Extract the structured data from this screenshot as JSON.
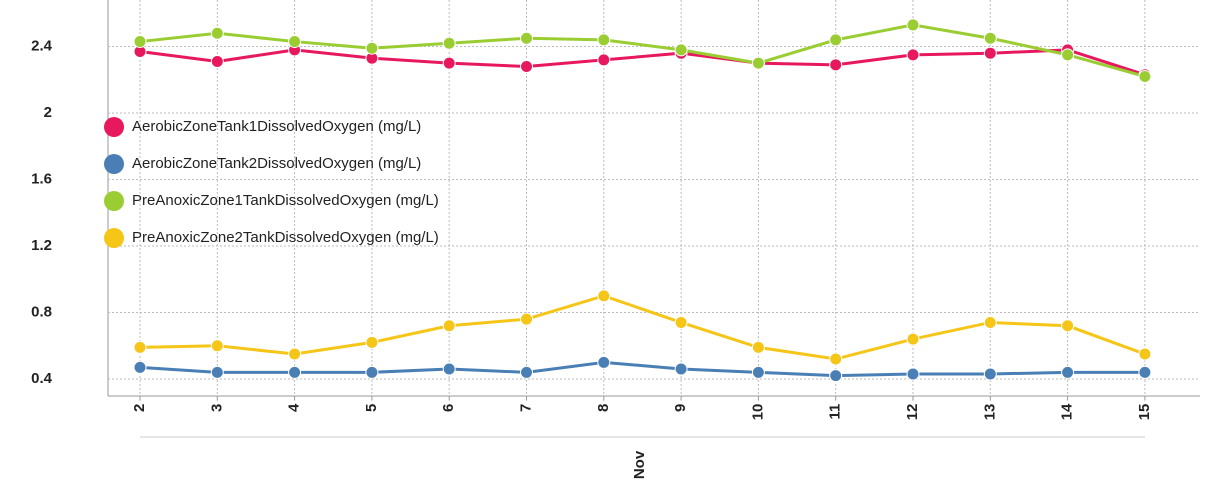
{
  "chart_data": {
    "type": "line",
    "x_label": "Nov",
    "categories": [
      "2",
      "3",
      "4",
      "5",
      "6",
      "7",
      "8",
      "9",
      "10",
      "11",
      "12",
      "13",
      "14",
      "15"
    ],
    "ylim": [
      0.3,
      2.68
    ],
    "yticks": [
      0.4,
      0.8,
      1.2,
      1.6,
      2,
      2.4
    ],
    "grid": true,
    "legend": "upper left",
    "series": [
      {
        "name": "AerobicZoneTank1DissolvedOxygen (mg/L)",
        "color": "#e8185e",
        "values": [
          2.37,
          2.31,
          2.38,
          2.33,
          2.3,
          2.28,
          2.32,
          2.36,
          2.3,
          2.29,
          2.35,
          2.36,
          2.38,
          2.23
        ]
      },
      {
        "name": "AerobicZoneTank2DissolvedOxygen (mg/L)",
        "color": "#4a7fb5",
        "values": [
          0.47,
          0.44,
          0.44,
          0.44,
          0.46,
          0.44,
          0.5,
          0.46,
          0.44,
          0.42,
          0.43,
          0.43,
          0.44,
          0.44
        ]
      },
      {
        "name": "PreAnoxicZone1TankDissolvedOxygen (mg/L)",
        "color": "#9acd32",
        "values": [
          2.43,
          2.48,
          2.43,
          2.39,
          2.42,
          2.45,
          2.44,
          2.38,
          2.3,
          2.44,
          2.53,
          2.45,
          2.35,
          2.22
        ]
      },
      {
        "name": "PreAnoxicZone2TankDissolvedOxygen (mg/L)",
        "color": "#f5c518",
        "values": [
          0.59,
          0.6,
          0.55,
          0.62,
          0.72,
          0.76,
          0.9,
          0.74,
          0.59,
          0.52,
          0.64,
          0.74,
          0.72,
          0.55
        ]
      }
    ]
  }
}
